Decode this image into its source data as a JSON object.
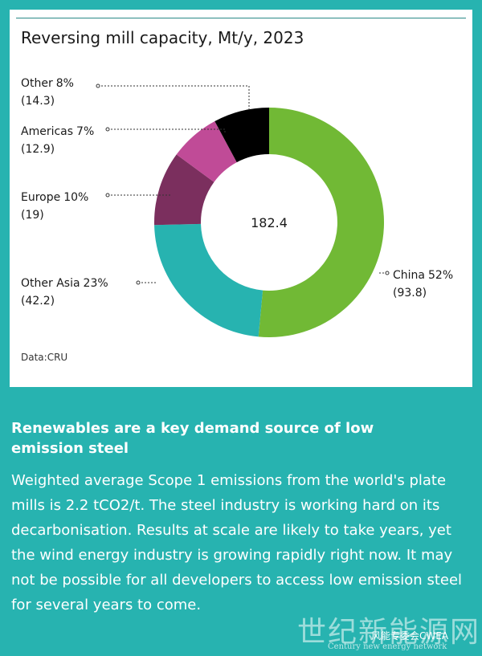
{
  "chart_data": {
    "type": "pie",
    "title": "Reversing mill capacity, Mt/y, 2023",
    "total_label": "182.4",
    "source": "Data:CRU",
    "slices": [
      {
        "name": "China",
        "percent_label": "52%",
        "value_label": "(93.8)",
        "value": 93.8,
        "color": "#71b935"
      },
      {
        "name": "Other Asia",
        "percent_label": "23%",
        "value_label": "(42.2)",
        "value": 42.2,
        "color": "#27b3b0"
      },
      {
        "name": "Europe",
        "percent_label": "10%",
        "value_label": "(19)",
        "value": 19,
        "color": "#7b2f5e"
      },
      {
        "name": "Americas",
        "percent_label": "7%",
        "value_label": "(12.9)",
        "value": 12.9,
        "color": "#c04b97"
      },
      {
        "name": "Other",
        "percent_label": "8%",
        "value_label": "(14.3)",
        "value": 14.3,
        "color": "#000000"
      }
    ]
  },
  "article": {
    "headline": "Renewables are a key demand source of low emission steel",
    "body": "Weighted average Scope 1 emissions from the world's plate mills is 2.2 tCO2/t. The steel industry is working hard on its decarbonisation. Results at scale are likely to take years, yet the wind energy industry is growing rapidly right now. It may not be possible for all developers to access low emission steel for several years to come."
  },
  "watermark": {
    "text": "世纪新能源网",
    "subtitle": "Century new energy network",
    "tag": "风能专委会CWEA"
  }
}
